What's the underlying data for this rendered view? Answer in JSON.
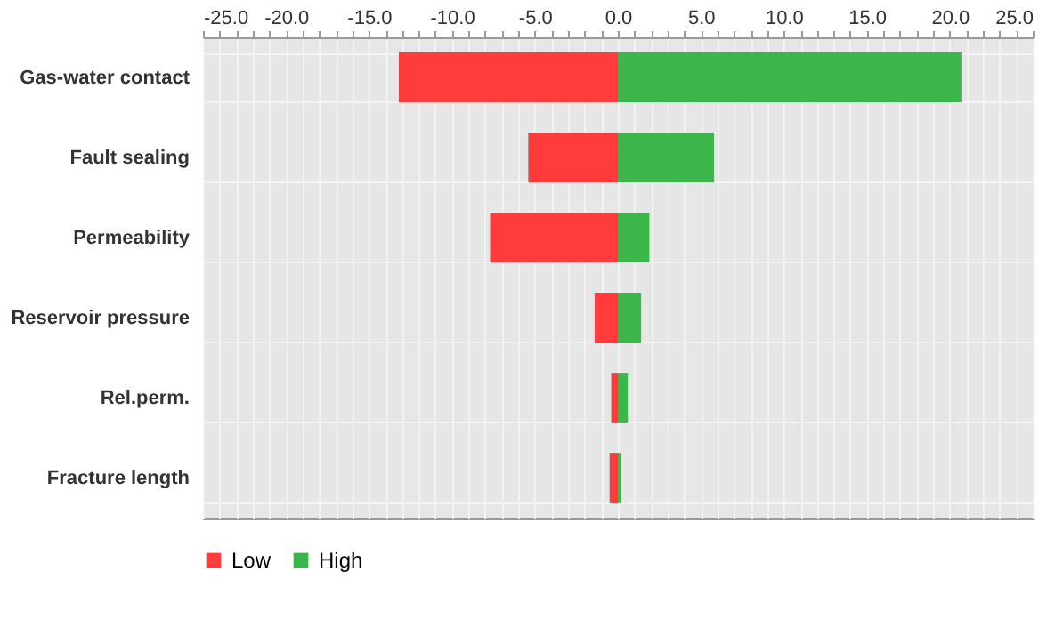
{
  "chart_data": {
    "type": "bar",
    "orientation": "horizontal",
    "stacked": true,
    "categories": [
      "Gas-water contact",
      "Fault sealing",
      "Permeability",
      "Reservoir pressure",
      "Rel.perm.",
      "Fracture length"
    ],
    "series": [
      {
        "name": "Low",
        "color": "#ff3b3b",
        "values": [
          -13.2,
          -5.4,
          -7.7,
          -1.4,
          -0.4,
          -0.5
        ]
      },
      {
        "name": "High",
        "color": "#3cb54a",
        "values": [
          20.7,
          5.8,
          1.9,
          1.4,
          0.6,
          0.2
        ]
      }
    ],
    "xlim": [
      -25,
      25
    ],
    "xticks": [
      {
        "value": -25,
        "label": "-25.0"
      },
      {
        "value": -24,
        "label": null
      },
      {
        "value": -23,
        "label": null
      },
      {
        "value": -22,
        "label": null
      },
      {
        "value": -21,
        "label": null
      },
      {
        "value": -20,
        "label": "-20.0"
      },
      {
        "value": -19,
        "label": null
      },
      {
        "value": -18,
        "label": null
      },
      {
        "value": -17,
        "label": null
      },
      {
        "value": -16,
        "label": null
      },
      {
        "value": -15,
        "label": "-15.0"
      },
      {
        "value": -14,
        "label": null
      },
      {
        "value": -13,
        "label": null
      },
      {
        "value": -12,
        "label": null
      },
      {
        "value": -11,
        "label": null
      },
      {
        "value": -10,
        "label": "-10.0"
      },
      {
        "value": -9,
        "label": null
      },
      {
        "value": -8,
        "label": null
      },
      {
        "value": -7,
        "label": null
      },
      {
        "value": -6,
        "label": null
      },
      {
        "value": -5,
        "label": "-5.0"
      },
      {
        "value": -4,
        "label": null
      },
      {
        "value": -3,
        "label": null
      },
      {
        "value": -2,
        "label": null
      },
      {
        "value": -1,
        "label": null
      },
      {
        "value": 0,
        "label": "0.0"
      },
      {
        "value": 1,
        "label": null
      },
      {
        "value": 2,
        "label": null
      },
      {
        "value": 3,
        "label": null
      },
      {
        "value": 4,
        "label": null
      },
      {
        "value": 5,
        "label": "5.0"
      },
      {
        "value": 6,
        "label": null
      },
      {
        "value": 7,
        "label": null
      },
      {
        "value": 8,
        "label": null
      },
      {
        "value": 9,
        "label": null
      },
      {
        "value": 10,
        "label": "10.0"
      },
      {
        "value": 11,
        "label": null
      },
      {
        "value": 12,
        "label": null
      },
      {
        "value": 13,
        "label": null
      },
      {
        "value": 14,
        "label": null
      },
      {
        "value": 15,
        "label": "15.0"
      },
      {
        "value": 16,
        "label": null
      },
      {
        "value": 17,
        "label": null
      },
      {
        "value": 18,
        "label": null
      },
      {
        "value": 19,
        "label": null
      },
      {
        "value": 20,
        "label": "20.0"
      },
      {
        "value": 21,
        "label": null
      },
      {
        "value": 22,
        "label": null
      },
      {
        "value": 23,
        "label": null
      },
      {
        "value": 24,
        "label": null
      },
      {
        "value": 25,
        "label": "25.0"
      }
    ],
    "grid": true,
    "legend": "bottom"
  }
}
